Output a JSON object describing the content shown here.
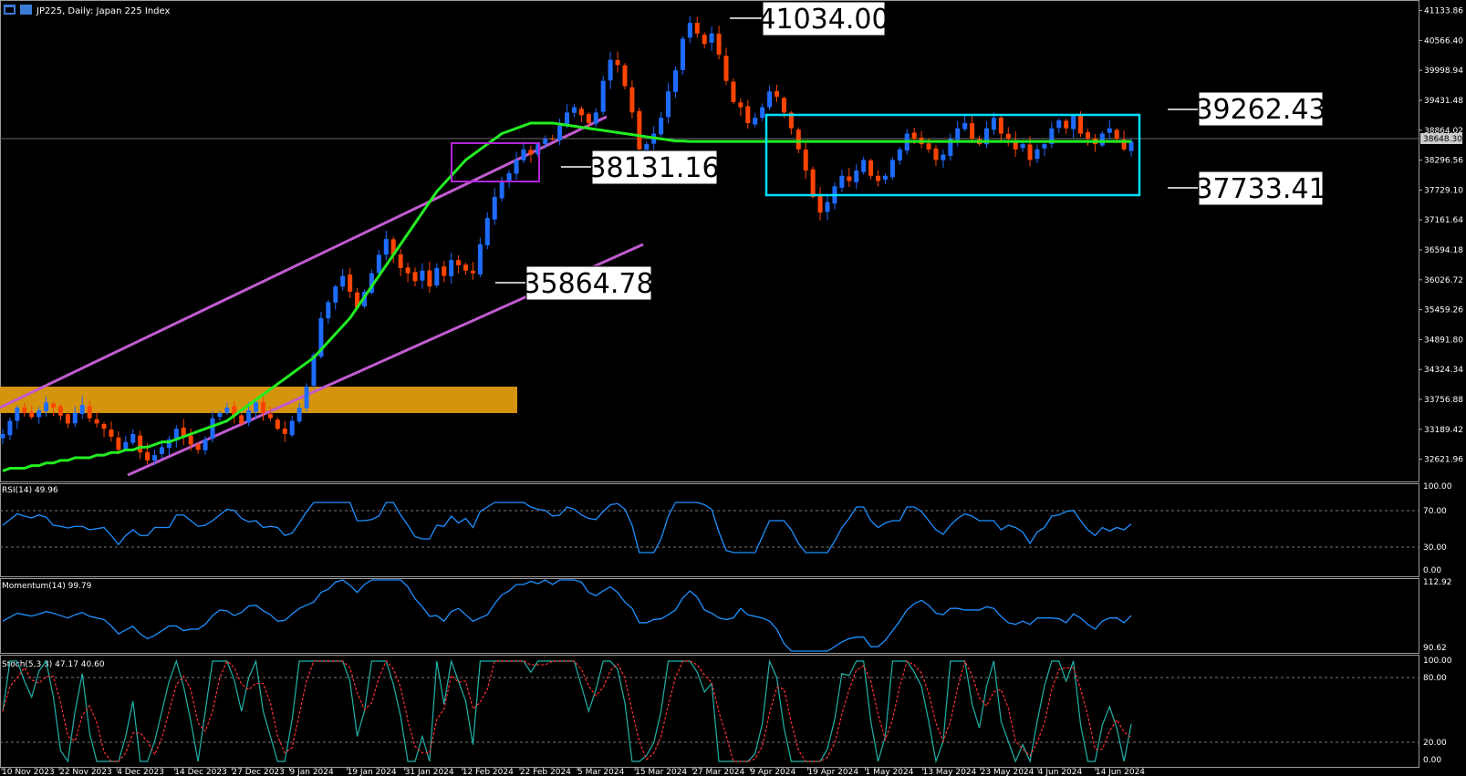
{
  "header": {
    "symbol_title": "JP225, Daily:  Japan 225 Index"
  },
  "colors": {
    "background": "#000000",
    "bull": "#1e6cff",
    "bear": "#ff4500",
    "ma": "#22ee22",
    "channel": "#c05ccf",
    "range_box": "#00e0ff",
    "support_zone": "#d4940e",
    "rsi": "#1e90ff",
    "stoch_main": "#20b2aa",
    "stoch_signal": "#ff3030"
  },
  "axis": {
    "price_ticks": [
      "41133.86",
      "40566.40",
      "39998.94",
      "39431.48",
      "38864.02",
      "38296.56",
      "37729.10",
      "37161.64",
      "36594.18",
      "36026.72",
      "35459.26",
      "34891.80",
      "34324.34",
      "33756.88",
      "33189.42",
      "32621.96"
    ],
    "current_price": "38648.30",
    "date_labels": [
      "10 Nov 2023",
      "22 Nov 2023",
      "4 Dec 2023",
      "14 Dec 2023",
      "27 Dec 2023",
      "9 Jan 2024",
      "19 Jan 2024",
      "31 Jan 2024",
      "12 Feb 2024",
      "22 Feb 2024",
      "5 Mar 2024",
      "15 Mar 2024",
      "27 Mar 2024",
      "9 Apr 2024",
      "19 Apr 2024",
      "1 May 2024",
      "13 May 2024",
      "23 May 2024",
      "4 Jun 2024",
      "14 Jun 2024"
    ]
  },
  "annotations": {
    "peak": "41034.00",
    "range_top": "39262.43",
    "range_bottom": "37733.41",
    "breakout": "38131.16",
    "channel_support": "35864.78"
  },
  "indicators": {
    "rsi": {
      "label": "RSI(14) 49.96",
      "ticks": [
        "100.00",
        "70.00",
        "30.00",
        "0.00"
      ]
    },
    "momentum": {
      "label": "Momentum(14) 99.79",
      "ticks": [
        "112.92",
        "90.62"
      ]
    },
    "stoch": {
      "label": "Stoch(5,3,3) 47.17 40.60",
      "ticks": [
        "100.00",
        "80.00",
        "20.00",
        "0.00"
      ]
    }
  },
  "chart_data": {
    "type": "candlestick",
    "title": "JP225, Daily:  Japan 225 Index",
    "ylim": [
      32200,
      41300
    ],
    "close_series": [
      33100,
      33350,
      33600,
      33500,
      33420,
      33550,
      33700,
      33600,
      33450,
      33300,
      33500,
      33650,
      33400,
      33300,
      33200,
      33050,
      32800,
      32950,
      33100,
      32750,
      32600,
      32700,
      32850,
      33000,
      33200,
      33050,
      32900,
      32800,
      33000,
      33400,
      33500,
      33600,
      33450,
      33300,
      33550,
      33700,
      33500,
      33400,
      33200,
      33100,
      33350,
      33600,
      34000,
      34600,
      35300,
      35600,
      35900,
      36100,
      35800,
      35500,
      35800,
      36150,
      36500,
      36800,
      36500,
      36250,
      36150,
      36000,
      36200,
      35900,
      36250,
      36100,
      36400,
      36300,
      36200,
      36150,
      36700,
      37200,
      37600,
      37900,
      38050,
      38300,
      38500,
      38400,
      38600,
      38700,
      38700,
      38950,
      39200,
      39300,
      39150,
      39000,
      39200,
      39800,
      40200,
      40100,
      39700,
      39200,
      38500,
      38600,
      38800,
      39100,
      39600,
      40000,
      40600,
      40900,
      40700,
      40500,
      40700,
      40300,
      39800,
      39400,
      39300,
      39000,
      39100,
      39300,
      39600,
      39500,
      39200,
      38900,
      38500,
      38100,
      37600,
      37300,
      37500,
      37800,
      38000,
      37900,
      38100,
      38300,
      38000,
      37900,
      38000,
      38300,
      38500,
      38800,
      38700,
      38600,
      38500,
      38300,
      38400,
      38700,
      38900,
      39000,
      38700,
      38600,
      38900,
      39100,
      38800,
      38700,
      38500,
      38600,
      38300,
      38500,
      38600,
      38900,
      39050,
      38900,
      39150,
      38800,
      38700,
      38600,
      38800,
      38900,
      38700,
      38500,
      38650
    ],
    "moving_average_series": [
      32400,
      32450,
      32450,
      32450,
      32500,
      32500,
      32550,
      32550,
      32600,
      32600,
      32650,
      32650,
      32650,
      32700,
      32700,
      32750,
      32750,
      32800,
      32800,
      32850,
      32850,
      32900,
      32950,
      32950,
      33000,
      33050,
      33100,
      33150,
      33200,
      33250,
      33300,
      33350,
      33450,
      33550,
      33650,
      33750,
      33850,
      33950,
      34050,
      34150,
      34250,
      34350,
      34450,
      34550,
      34700,
      34850,
      35000,
      35150,
      35300,
      35500,
      35700,
      35900,
      36100,
      36300,
      36500,
      36700,
      36900,
      37100,
      37300,
      37500,
      37700,
      37850,
      38000,
      38150,
      38300,
      38400,
      38500,
      38600,
      38700,
      38800,
      38850,
      38900,
      38950,
      39000,
      39000,
      39000,
      39000,
      38980,
      38960,
      38940,
      38920,
      38900,
      38880,
      38860,
      38840,
      38820,
      38800,
      38780,
      38760,
      38740,
      38720,
      38700,
      38680,
      38660,
      38660,
      38650,
      38650,
      38650,
      38650,
      38650,
      38650,
      38650,
      38650,
      38650,
      38650,
      38650,
      38650,
      38650,
      38650,
      38650,
      38650,
      38650,
      38650,
      38650,
      38650,
      38650,
      38650,
      38650,
      38650,
      38650,
      38650,
      38650,
      38650,
      38650,
      38650,
      38650,
      38650,
      38650,
      38650,
      38650,
      38650,
      38650,
      38650,
      38650,
      38650,
      38650,
      38650,
      38650,
      38650,
      38650,
      38650,
      38650,
      38650,
      38650,
      38650,
      38650,
      38650,
      38650,
      38650,
      38650,
      38650,
      38650,
      38650,
      38650,
      38650,
      38650,
      38650
    ]
  }
}
